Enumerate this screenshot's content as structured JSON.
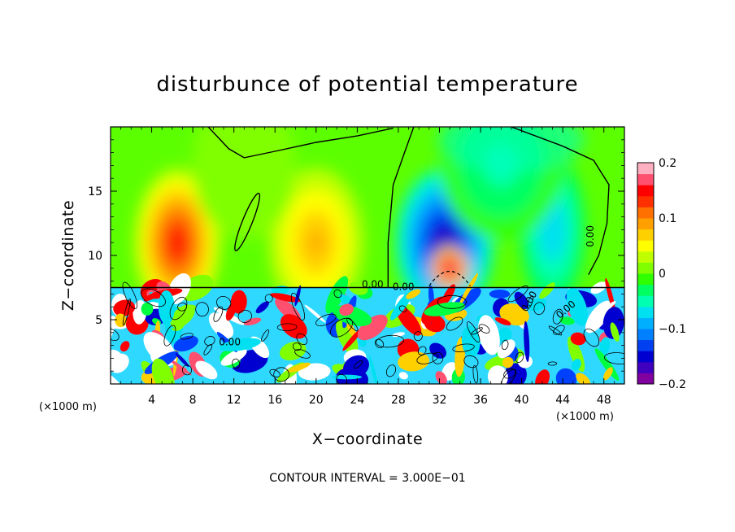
{
  "chart_data": {
    "type": "heatmap",
    "title": "disturbunce of potential temperature",
    "xlabel": "X−coordinate",
    "ylabel": "Z−coordinate",
    "x_unit_left": "(×1000 m)",
    "x_unit_right": "(×1000 m)",
    "xlim": [
      0,
      50
    ],
    "ylim": [
      0,
      20
    ],
    "x_ticks": [
      {
        "value": 4,
        "label": "4"
      },
      {
        "value": 8,
        "label": "8"
      },
      {
        "value": 12,
        "label": "12"
      },
      {
        "value": 16,
        "label": "16"
      },
      {
        "value": 20,
        "label": "20"
      },
      {
        "value": 24,
        "label": "24"
      },
      {
        "value": 28,
        "label": "28"
      },
      {
        "value": 32,
        "label": "32"
      },
      {
        "value": 36,
        "label": "36"
      },
      {
        "value": 40,
        "label": "40"
      },
      {
        "value": 44,
        "label": "44"
      },
      {
        "value": 48,
        "label": "48"
      }
    ],
    "y_ticks": [
      {
        "value": 5,
        "label": "5"
      },
      {
        "value": 10,
        "label": "10"
      },
      {
        "value": 15,
        "label": "15"
      }
    ],
    "colorbar": {
      "min": -0.2,
      "max": 0.2,
      "labels": [
        {
          "value": 0.2,
          "label": "0.2"
        },
        {
          "value": 0.1,
          "label": "0.1"
        },
        {
          "value": 0,
          "label": "0"
        },
        {
          "value": -0.1,
          "label": "−0.1"
        },
        {
          "value": -0.2,
          "label": "−0.2"
        }
      ],
      "colors": [
        "#8000a0",
        "#4000c0",
        "#0000d0",
        "#0040f0",
        "#0080ff",
        "#00b0ff",
        "#00e0f0",
        "#00ffb0",
        "#00ff60",
        "#30ff00",
        "#80ff00",
        "#c0ff00",
        "#ffff00",
        "#ffd000",
        "#ffa000",
        "#ff7000",
        "#ff3000",
        "#ff0000",
        "#ff5070",
        "#ffb0c0"
      ]
    },
    "features": [
      {
        "x": 6.5,
        "z": 11,
        "value": 0.14
      },
      {
        "x": 20,
        "z": 11,
        "value": 0.09
      },
      {
        "x": 13,
        "z": 17,
        "value": 0.02
      },
      {
        "x": 32.5,
        "z": 11,
        "value": -0.18
      },
      {
        "x": 43,
        "z": 12,
        "value": -0.08
      },
      {
        "x": 38,
        "z": 17,
        "value": -0.05
      },
      {
        "x": 33,
        "z": 9,
        "value": 0.2
      }
    ],
    "contour_labels": [
      "0.00",
      "0.00",
      "0.00",
      "0.00",
      "0.00",
      "0.00"
    ],
    "contour_interval_text": "CONTOUR INTERVAL = 3.000E−01"
  }
}
